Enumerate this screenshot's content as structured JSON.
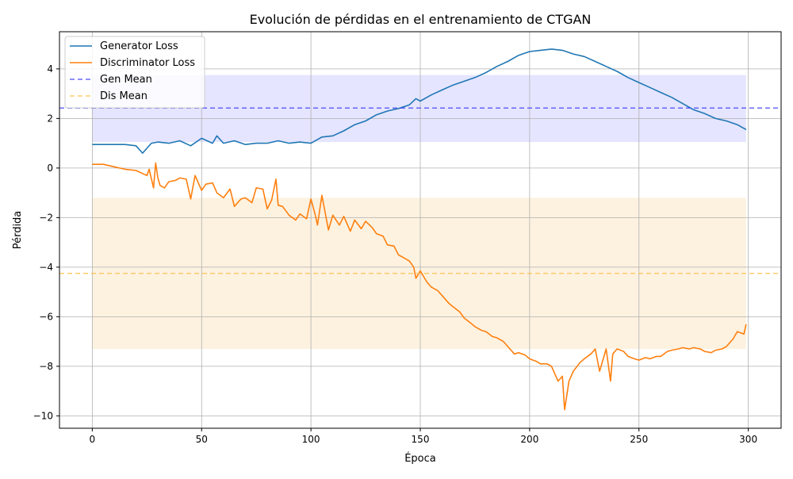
{
  "chart_data": {
    "type": "line",
    "title": "Evolución de pérdidas en el entrenamiento de CTGAN",
    "xlabel": "Época",
    "ylabel": "Pérdida",
    "xlim": [
      -15,
      315
    ],
    "ylim": [
      -10.5,
      5.5
    ],
    "xticks": [
      0,
      50,
      100,
      150,
      200,
      250,
      300
    ],
    "yticks": [
      -10,
      -8,
      -6,
      -4,
      -2,
      0,
      2,
      4
    ],
    "grid": true,
    "legend_position": "upper-left",
    "series": [
      {
        "name": "Generator Loss",
        "color": "#1f77b4",
        "style": "solid",
        "x": [
          0,
          5,
          10,
          15,
          20,
          23,
          25,
          27,
          30,
          35,
          40,
          45,
          50,
          55,
          57,
          60,
          65,
          70,
          75,
          80,
          85,
          90,
          95,
          100,
          105,
          110,
          115,
          120,
          125,
          130,
          135,
          140,
          145,
          148,
          150,
          155,
          160,
          165,
          170,
          175,
          180,
          185,
          190,
          195,
          200,
          205,
          210,
          215,
          220,
          225,
          230,
          235,
          240,
          245,
          250,
          255,
          260,
          265,
          270,
          275,
          280,
          285,
          290,
          295,
          299
        ],
        "y": [
          0.95,
          0.95,
          0.95,
          0.95,
          0.9,
          0.6,
          0.8,
          1.0,
          1.05,
          1.0,
          1.1,
          0.9,
          1.2,
          1.0,
          1.3,
          1.0,
          1.1,
          0.95,
          1.0,
          1.0,
          1.1,
          1.0,
          1.05,
          1.0,
          1.25,
          1.3,
          1.5,
          1.75,
          1.9,
          2.15,
          2.3,
          2.4,
          2.55,
          2.8,
          2.7,
          2.95,
          3.15,
          3.35,
          3.5,
          3.65,
          3.85,
          4.1,
          4.3,
          4.55,
          4.7,
          4.75,
          4.8,
          4.75,
          4.6,
          4.5,
          4.3,
          4.1,
          3.9,
          3.65,
          3.45,
          3.25,
          3.05,
          2.85,
          2.6,
          2.35,
          2.2,
          2.0,
          1.9,
          1.75,
          1.55
        ]
      },
      {
        "name": "Discriminator Loss",
        "color": "#ff7f0e",
        "style": "solid",
        "x": [
          0,
          5,
          10,
          15,
          20,
          25,
          26,
          28,
          29,
          30,
          31,
          33,
          35,
          38,
          40,
          43,
          45,
          47,
          50,
          52,
          55,
          57,
          60,
          63,
          65,
          68,
          70,
          73,
          75,
          78,
          80,
          82,
          84,
          85,
          87,
          90,
          93,
          95,
          98,
          100,
          102,
          103,
          105,
          108,
          110,
          113,
          115,
          118,
          120,
          123,
          125,
          128,
          130,
          133,
          135,
          138,
          140,
          143,
          145,
          147,
          148,
          150,
          153,
          155,
          158,
          160,
          163,
          165,
          168,
          170,
          173,
          175,
          178,
          180,
          183,
          185,
          188,
          190,
          193,
          195,
          198,
          200,
          203,
          205,
          208,
          210,
          213,
          215,
          216,
          218,
          220,
          223,
          225,
          228,
          230,
          232,
          235,
          237,
          238,
          240,
          243,
          245,
          248,
          250,
          253,
          255,
          258,
          260,
          263,
          265,
          268,
          270,
          273,
          275,
          278,
          280,
          283,
          285,
          288,
          290,
          293,
          295,
          298,
          299
        ],
        "y": [
          0.15,
          0.15,
          0.05,
          -0.05,
          -0.1,
          -0.3,
          -0.05,
          -0.8,
          0.2,
          -0.4,
          -0.7,
          -0.8,
          -0.55,
          -0.5,
          -0.4,
          -0.45,
          -1.25,
          -0.3,
          -0.9,
          -0.65,
          -0.6,
          -1.0,
          -1.2,
          -0.85,
          -1.55,
          -1.25,
          -1.2,
          -1.4,
          -0.8,
          -0.85,
          -1.65,
          -1.3,
          -0.45,
          -1.5,
          -1.55,
          -1.9,
          -2.1,
          -1.85,
          -2.05,
          -1.25,
          -1.9,
          -2.3,
          -1.1,
          -2.5,
          -1.9,
          -2.3,
          -1.95,
          -2.55,
          -2.1,
          -2.45,
          -2.15,
          -2.4,
          -2.65,
          -2.75,
          -3.1,
          -3.15,
          -3.5,
          -3.65,
          -3.75,
          -4.0,
          -4.45,
          -4.15,
          -4.6,
          -4.8,
          -4.95,
          -5.15,
          -5.45,
          -5.6,
          -5.8,
          -6.05,
          -6.25,
          -6.4,
          -6.55,
          -6.6,
          -6.8,
          -6.85,
          -7.0,
          -7.2,
          -7.5,
          -7.45,
          -7.55,
          -7.7,
          -7.8,
          -7.9,
          -7.9,
          -8.0,
          -8.6,
          -8.4,
          -9.75,
          -8.6,
          -8.2,
          -7.85,
          -7.7,
          -7.5,
          -7.3,
          -8.2,
          -7.3,
          -8.6,
          -7.5,
          -7.3,
          -7.4,
          -7.6,
          -7.7,
          -7.75,
          -7.65,
          -7.7,
          -7.6,
          -7.6,
          -7.4,
          -7.35,
          -7.3,
          -7.25,
          -7.3,
          -7.25,
          -7.3,
          -7.4,
          -7.45,
          -7.35,
          -7.3,
          -7.2,
          -6.9,
          -6.6,
          -6.7,
          -6.3
        ]
      },
      {
        "name": "Gen Mean",
        "color": "#4646ff",
        "style": "dashed",
        "value": 2.42
      },
      {
        "name": "Dis Mean",
        "color": "#ffc04d",
        "style": "dashed",
        "value": -4.25
      }
    ],
    "bands": [
      {
        "x_start": 0,
        "x_end": 299,
        "y_low": 1.05,
        "y_high": 3.75,
        "color": "#e5e5ff"
      },
      {
        "x_start": 0,
        "x_end": 299,
        "y_low": -7.3,
        "y_high": -1.2,
        "color": "#fdf2e0"
      }
    ]
  }
}
